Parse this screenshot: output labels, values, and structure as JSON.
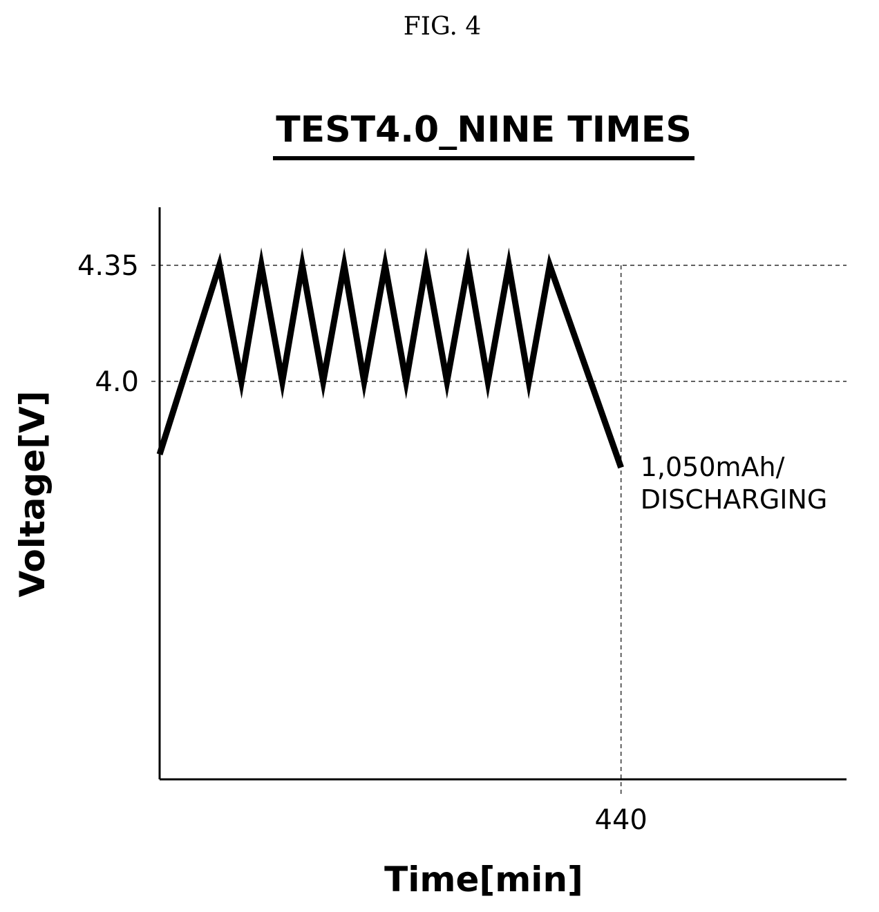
{
  "figure": {
    "label": "FIG. 4"
  },
  "chart_data": {
    "type": "line",
    "title": "TEST4.0_NINE TIMES",
    "xlabel": "Time[min]",
    "ylabel": "Voltage[V]",
    "x_ticks": [
      440
    ],
    "x_tick_labels": [
      "440"
    ],
    "y_ticks": [
      4.0,
      4.35
    ],
    "y_tick_labels": [
      "4.0",
      "4.35"
    ],
    "xlim": [
      0,
      655
    ],
    "ylim": [
      2.8,
      4.525
    ],
    "grid": {
      "horizontal_at": [
        4.0,
        4.35
      ],
      "vertical_at": [
        440
      ]
    },
    "series": [
      {
        "x": [
          0,
          57,
          78,
          97,
          117,
          136,
          156,
          176,
          195,
          215,
          235,
          254,
          274,
          294,
          313,
          333,
          352,
          372,
          440
        ],
        "y": [
          3.78,
          4.35,
          4.0,
          4.35,
          4.0,
          4.35,
          4.0,
          4.35,
          4.0,
          4.35,
          4.0,
          4.35,
          4.0,
          4.35,
          4.0,
          4.35,
          4.0,
          4.35,
          3.74
        ]
      }
    ],
    "annotations": [
      {
        "lines": [
          "1,050mAh/",
          "DISCHARGING"
        ],
        "x": 440,
        "y": 3.74
      }
    ]
  }
}
